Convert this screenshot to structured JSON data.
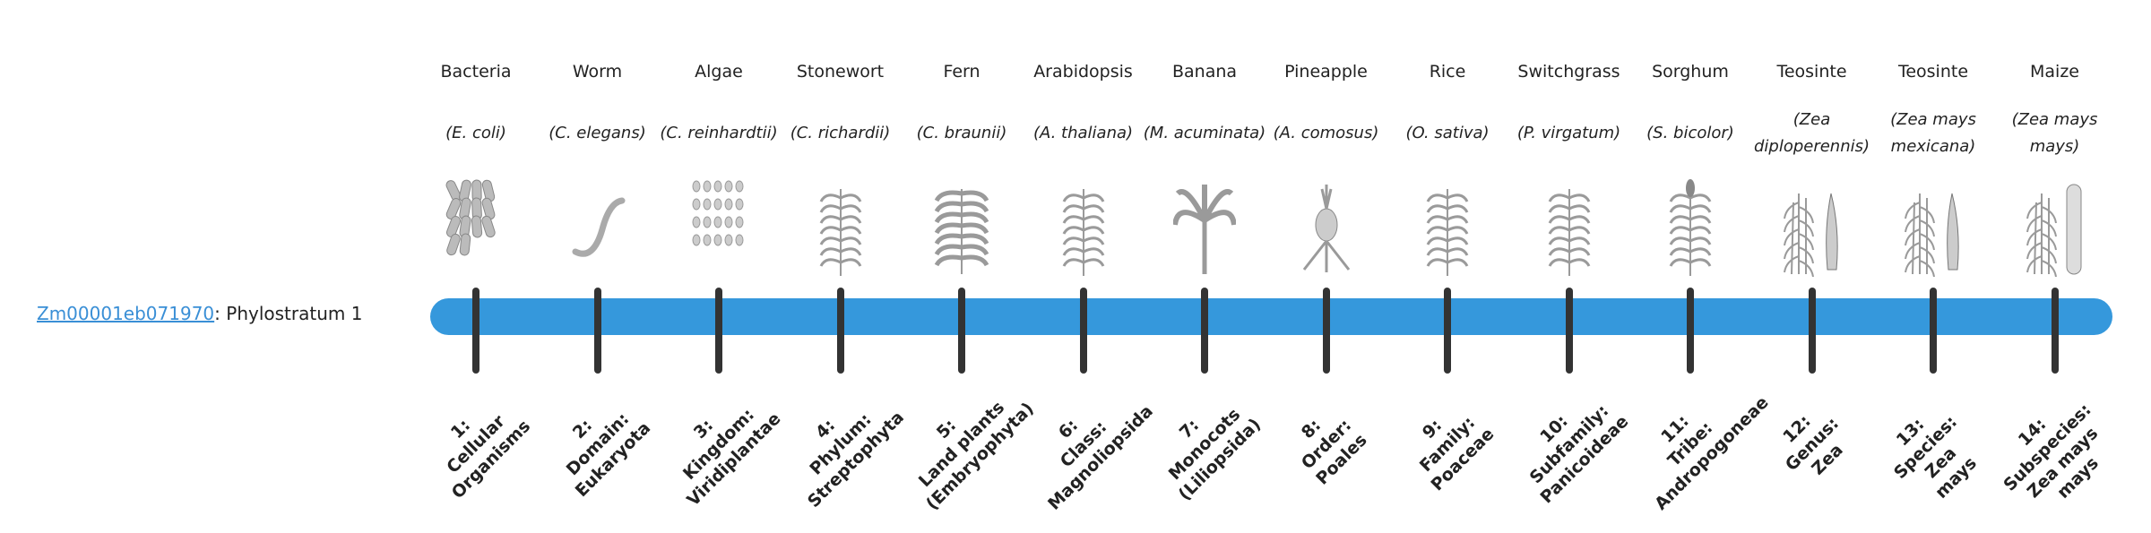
{
  "gene": {
    "id": "Zm00001eb071970",
    "suffix": ": Phylostratum 1"
  },
  "colors": {
    "bar": "#3598dc",
    "link": "#3a8fd6",
    "tick": "#333333"
  },
  "organisms": [
    {
      "common": "Bacteria",
      "latin": "(E. coli)",
      "icon": "bacteria-icon"
    },
    {
      "common": "Worm",
      "latin": "(C. elegans)",
      "icon": "worm-icon"
    },
    {
      "common": "Algae",
      "latin": "(C. reinhardtii)",
      "icon": "algae-icon"
    },
    {
      "common": "Stonewort",
      "latin": "(C. richardii)",
      "icon": "stonewort-icon"
    },
    {
      "common": "Fern",
      "latin": "(C. braunii)",
      "icon": "fern-icon"
    },
    {
      "common": "Arabidopsis",
      "latin": "(A. thaliana)",
      "icon": "arabidopsis-icon"
    },
    {
      "common": "Banana",
      "latin": "(M. acuminata)",
      "icon": "banana-icon"
    },
    {
      "common": "Pineapple",
      "latin": "(A. comosus)",
      "icon": "pineapple-icon"
    },
    {
      "common": "Rice",
      "latin": "(O. sativa)",
      "icon": "rice-icon"
    },
    {
      "common": "Switchgrass",
      "latin": "(P. virgatum)",
      "icon": "switchgrass-icon"
    },
    {
      "common": "Sorghum",
      "latin": "(S. bicolor)",
      "icon": "sorghum-icon"
    },
    {
      "common": "Teosinte",
      "latin": "(Zea diploperennis)",
      "icon": "teosinte-icon"
    },
    {
      "common": "Teosinte",
      "latin": "(Zea mays mexicana)",
      "icon": "teosinte-icon"
    },
    {
      "common": "Maize",
      "latin": "(Zea mays mays)",
      "icon": "maize-icon"
    }
  ],
  "strata": [
    {
      "num": "1:",
      "lines": [
        "Cellular",
        "Organisms"
      ]
    },
    {
      "num": "2:",
      "lines": [
        "Domain:",
        "Eukaryota"
      ]
    },
    {
      "num": "3:",
      "lines": [
        "Kingdom:",
        "Viridiplantae"
      ]
    },
    {
      "num": "4:",
      "lines": [
        "Phylum:",
        "Streptophyta"
      ]
    },
    {
      "num": "5:",
      "lines": [
        "Land plants",
        "(Embryophyta)"
      ]
    },
    {
      "num": "6:",
      "lines": [
        "Class:",
        "Magnoliopsida"
      ]
    },
    {
      "num": "7:",
      "lines": [
        "Monocots",
        "(Liliopsida)"
      ]
    },
    {
      "num": "8:",
      "lines": [
        "Order:",
        "Poales"
      ]
    },
    {
      "num": "9:",
      "lines": [
        "Family:",
        "Poaceae"
      ]
    },
    {
      "num": "10:",
      "lines": [
        "Subfamily:",
        "Panicoideae"
      ]
    },
    {
      "num": "11:",
      "lines": [
        "Tribe:",
        "Andropogoneae"
      ]
    },
    {
      "num": "12:",
      "lines": [
        "Genus:",
        "Zea"
      ]
    },
    {
      "num": "13:",
      "lines": [
        "Species:",
        "Zea",
        "mays"
      ]
    },
    {
      "num": "14:",
      "lines": [
        "Subspecies:",
        "Zea mays",
        "mays"
      ]
    }
  ]
}
